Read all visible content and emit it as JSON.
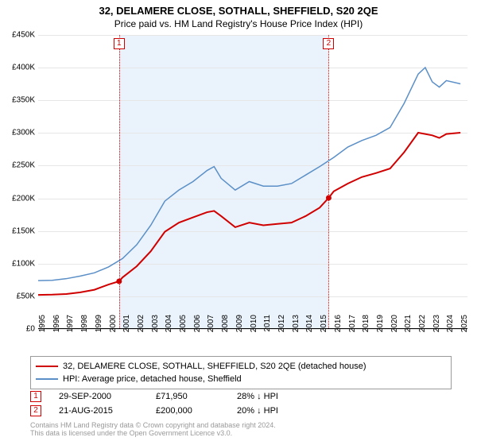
{
  "title": "32, DELAMERE CLOSE, SOTHALL, SHEFFIELD, S20 2QE",
  "subtitle": "Price paid vs. HM Land Registry's House Price Index (HPI)",
  "chart": {
    "type": "line",
    "background_color": "#ffffff",
    "grid_color": "#e6e6e6",
    "shade_color": "#eaf3fb",
    "xlim": [
      1995,
      2025.5
    ],
    "ylim": [
      0,
      450000
    ],
    "ytick_step": 50000,
    "yticks_labels": [
      "£0",
      "£50K",
      "£100K",
      "£150K",
      "£200K",
      "£250K",
      "£300K",
      "£350K",
      "£400K",
      "£450K"
    ],
    "xticks": [
      1995,
      1996,
      1997,
      1998,
      1999,
      2000,
      2001,
      2002,
      2003,
      2004,
      2005,
      2006,
      2007,
      2008,
      2009,
      2010,
      2011,
      2012,
      2013,
      2014,
      2015,
      2016,
      2017,
      2018,
      2019,
      2020,
      2021,
      2022,
      2023,
      2024,
      2025
    ],
    "series": [
      {
        "name": "property",
        "label": "32, DELAMERE CLOSE, SOTHALL, SHEFFIELD, S20 2QE (detached house)",
        "color": "#d00000",
        "line_width": 2,
        "data": [
          [
            1995,
            51000
          ],
          [
            1996,
            51500
          ],
          [
            1997,
            52500
          ],
          [
            1998,
            55000
          ],
          [
            1999,
            59000
          ],
          [
            2000,
            67000
          ],
          [
            2000.75,
            71950
          ],
          [
            2001,
            78000
          ],
          [
            2002,
            95000
          ],
          [
            2003,
            118000
          ],
          [
            2004,
            148000
          ],
          [
            2005,
            162000
          ],
          [
            2006,
            170000
          ],
          [
            2007,
            178000
          ],
          [
            2007.5,
            180000
          ],
          [
            2008,
            172000
          ],
          [
            2009,
            155000
          ],
          [
            2010,
            162000
          ],
          [
            2011,
            158000
          ],
          [
            2012,
            160000
          ],
          [
            2013,
            162000
          ],
          [
            2014,
            172000
          ],
          [
            2015,
            185000
          ],
          [
            2015.64,
            200000
          ],
          [
            2016,
            210000
          ],
          [
            2017,
            222000
          ],
          [
            2018,
            232000
          ],
          [
            2019,
            238000
          ],
          [
            2020,
            245000
          ],
          [
            2021,
            270000
          ],
          [
            2022,
            300000
          ],
          [
            2023,
            296000
          ],
          [
            2023.5,
            292000
          ],
          [
            2024,
            298000
          ],
          [
            2025,
            300000
          ]
        ]
      },
      {
        "name": "hpi",
        "label": "HPI: Average price, detached house, Sheffield",
        "color": "#5b8fc7",
        "line_width": 1.5,
        "data": [
          [
            1995,
            73000
          ],
          [
            1996,
            73500
          ],
          [
            1997,
            76000
          ],
          [
            1998,
            80000
          ],
          [
            1999,
            85000
          ],
          [
            2000,
            94000
          ],
          [
            2001,
            107000
          ],
          [
            2002,
            128000
          ],
          [
            2003,
            158000
          ],
          [
            2004,
            195000
          ],
          [
            2005,
            212000
          ],
          [
            2006,
            225000
          ],
          [
            2007,
            242000
          ],
          [
            2007.5,
            248000
          ],
          [
            2008,
            230000
          ],
          [
            2009,
            212000
          ],
          [
            2010,
            225000
          ],
          [
            2011,
            218000
          ],
          [
            2012,
            218000
          ],
          [
            2013,
            222000
          ],
          [
            2014,
            235000
          ],
          [
            2015,
            248000
          ],
          [
            2016,
            262000
          ],
          [
            2017,
            278000
          ],
          [
            2018,
            288000
          ],
          [
            2019,
            296000
          ],
          [
            2020,
            308000
          ],
          [
            2021,
            345000
          ],
          [
            2022,
            390000
          ],
          [
            2022.5,
            400000
          ],
          [
            2023,
            378000
          ],
          [
            2023.5,
            370000
          ],
          [
            2024,
            380000
          ],
          [
            2025,
            375000
          ]
        ]
      }
    ],
    "markers": [
      {
        "n": "1",
        "x": 2000.75,
        "y": 71950
      },
      {
        "n": "2",
        "x": 2015.64,
        "y": 200000
      }
    ],
    "shaded_ranges": [
      [
        2000.75,
        2015.64
      ]
    ]
  },
  "events": [
    {
      "n": "1",
      "date": "29-SEP-2000",
      "price": "£71,950",
      "delta": "28% ↓ HPI"
    },
    {
      "n": "2",
      "date": "21-AUG-2015",
      "price": "£200,000",
      "delta": "20% ↓ HPI"
    }
  ],
  "footer": {
    "line1": "Contains HM Land Registry data © Crown copyright and database right 2024.",
    "line2": "This data is licensed under the Open Government Licence v3.0."
  },
  "fonts": {
    "title_size": 13,
    "subtitle_size": 12,
    "tick_size": 10,
    "legend_size": 11,
    "footer_size": 9
  }
}
